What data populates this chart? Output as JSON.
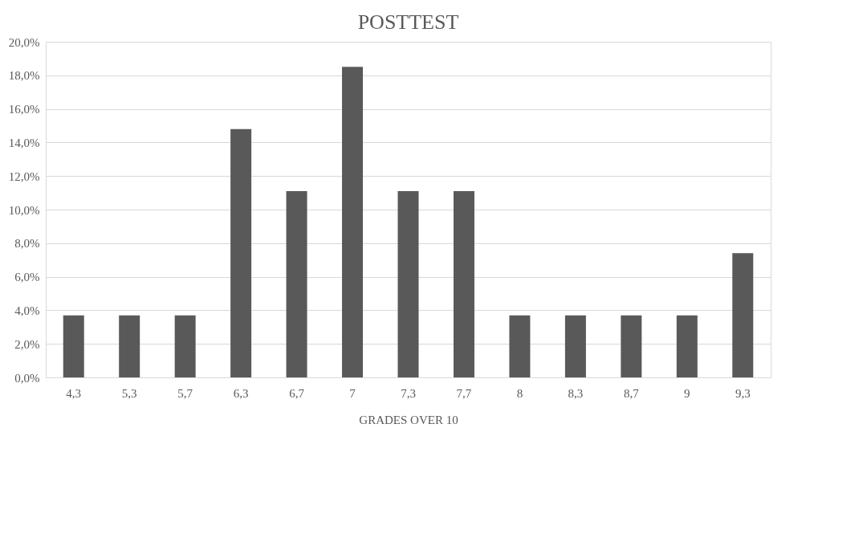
{
  "chart_data": {
    "type": "bar",
    "title": "POSTTEST",
    "xlabel": "GRADES OVER 10",
    "categories": [
      "4,3",
      "5,3",
      "5,7",
      "6,3",
      "6,7",
      "7",
      "7,3",
      "7,7",
      "8",
      "8,3",
      "8,7",
      "9",
      "9,3"
    ],
    "values": [
      3.7,
      3.7,
      3.7,
      14.8,
      11.1,
      18.5,
      11.1,
      11.1,
      3.7,
      3.7,
      3.7,
      3.7,
      7.4
    ],
    "color": "#595959",
    "ylim": [
      0,
      20
    ],
    "yticks": [
      {
        "value": 0,
        "label": "0,0%"
      },
      {
        "value": 2,
        "label": "2,0%"
      },
      {
        "value": 4,
        "label": "4,0%"
      },
      {
        "value": 6,
        "label": "6,0%"
      },
      {
        "value": 8,
        "label": "8,0%"
      },
      {
        "value": 10,
        "label": "10,0%"
      },
      {
        "value": 12,
        "label": "12,0%"
      },
      {
        "value": 14,
        "label": "14,0%"
      },
      {
        "value": 16,
        "label": "16,0%"
      },
      {
        "value": 18,
        "label": "18,0%"
      },
      {
        "value": 20,
        "label": "20,0%"
      }
    ],
    "grid": "y"
  }
}
